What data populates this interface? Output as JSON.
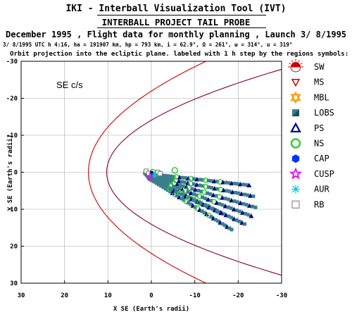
{
  "header": {
    "tool_title": "IKI - Interball Visualization Tool (IVT)",
    "project_title": "INTERBALL PROJECT TAIL PROBE",
    "plan_line": "December 1995 ,  Flight data for monthly planning ,  Launch  3/ 8/1995",
    "orbit_params": "3/ 8/1995 UTC  h 4:16, ha = 191907 km, hp =    793 km, i = 62.9°, Ω = 261°, ω = 314°, u = 319°",
    "projection_note": "Orbit projection into the ecliptic plane. labeled with 1 h step by the regions symbols:"
  },
  "colors": {
    "magnetopause": "#cc0000",
    "bow_shock": "#800040",
    "LOBS": "#3a7f8c",
    "PS": "#000080",
    "NS": "#33cc33",
    "CAP": "#0033ff",
    "CUSP": "#ee00ee",
    "AUR": "#00cccc",
    "MBL": "#ff9900",
    "MS": "#cc0000",
    "SW": "#cc0000",
    "RB": "#777777"
  },
  "chart_data": {
    "type": "scatter",
    "frame_label": "SE c/s",
    "xlabel": "X SE (Earth's radii)",
    "ylabel": "Y SE (Earth's radii)",
    "xlim": [
      30,
      -30
    ],
    "ylim": [
      -30,
      30
    ],
    "x_ticks": [
      30,
      20,
      10,
      0,
      -10,
      -20,
      -30
    ],
    "y_ticks": [
      -30,
      -20,
      -10,
      0,
      10,
      20,
      30
    ],
    "grid": true,
    "legend_position": "right",
    "legend": [
      {
        "code": "SW",
        "label": "SW",
        "marker": "sun",
        "color": "#cc0000"
      },
      {
        "code": "MS",
        "label": "MS",
        "marker": "triangle-down",
        "color": "#cc0000"
      },
      {
        "code": "MBL",
        "label": "MBL",
        "marker": "star-of-david",
        "color": "#ff9900"
      },
      {
        "code": "LOBS",
        "label": "LOBS",
        "marker": "square-split",
        "color": "#3a7f8c"
      },
      {
        "code": "PS",
        "label": "PS",
        "marker": "triangle-up",
        "color": "#000080"
      },
      {
        "code": "NS",
        "label": "NS",
        "marker": "circle",
        "color": "#33cc33"
      },
      {
        "code": "CAP",
        "label": "CAP",
        "marker": "hexagon",
        "color": "#0033ff"
      },
      {
        "code": "CUSP",
        "label": "CUSP",
        "marker": "star",
        "color": "#ee00ee"
      },
      {
        "code": "AUR",
        "label": "AUR",
        "marker": "asterisk",
        "color": "#00cccc"
      },
      {
        "code": "RB",
        "label": "RB",
        "marker": "square",
        "color": "#777777"
      }
    ],
    "boundaries": [
      {
        "label": "magnetopause",
        "color": "#cc0000",
        "subsolar_x": 14.5,
        "tail_half_width_x_ref": -10
      },
      {
        "label": "bow shock",
        "color": "#800040",
        "subsolar_x": 10.3
      }
    ],
    "orbit_tracks": [
      {
        "start": [
          1.5,
          0.3
        ],
        "end": [
          -22.5,
          3.5
        ]
      },
      {
        "start": [
          1.2,
          0.6
        ],
        "end": [
          -23.5,
          6.5
        ]
      },
      {
        "start": [
          1.0,
          0.9
        ],
        "end": [
          -24.0,
          9.5
        ]
      },
      {
        "start": [
          0.8,
          1.2
        ],
        "end": [
          -23.0,
          11.8
        ]
      },
      {
        "start": [
          0.6,
          1.5
        ],
        "end": [
          -21.5,
          14.0
        ]
      },
      {
        "start": [
          0.4,
          1.8
        ],
        "end": [
          -18.5,
          15.5
        ]
      },
      {
        "start": [
          0.2,
          2.0
        ],
        "end": [
          -16.0,
          11.0
        ]
      }
    ],
    "near_earth_points": [
      {
        "region": "RB",
        "x": 1.2,
        "y": -0.3
      },
      {
        "region": "RB",
        "x": 0.6,
        "y": 0.3
      },
      {
        "region": "RB",
        "x": -1.5,
        "y": 0.0
      },
      {
        "region": "RB",
        "x": -2.0,
        "y": 0.4
      },
      {
        "region": "NS",
        "x": -0.3,
        "y": 0.0
      },
      {
        "region": "NS",
        "x": -5.4,
        "y": -0.5
      },
      {
        "region": "CAP",
        "x": -0.1,
        "y": 0.2
      },
      {
        "region": "CUSP",
        "x": 0.3,
        "y": 1.2
      },
      {
        "region": "AUR",
        "x": -0.8,
        "y": 0.8
      },
      {
        "region": "MBL",
        "x": -0.1,
        "y": -0.1
      }
    ]
  }
}
